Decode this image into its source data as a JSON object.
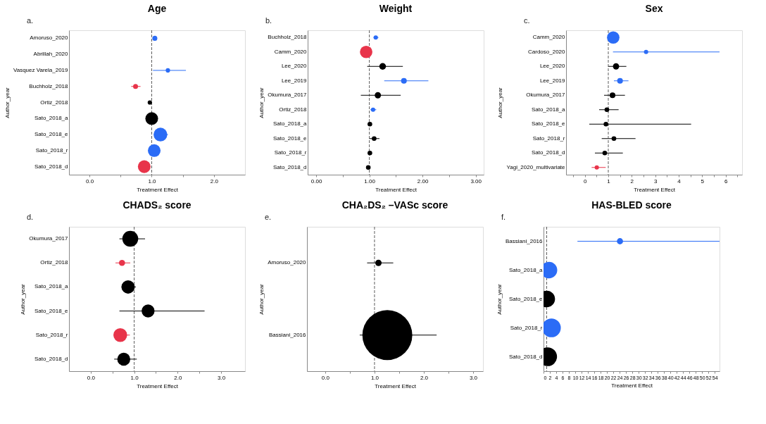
{
  "chart_data": [
    {
      "type": "bubble",
      "orientation": "horizontal",
      "title": "Age",
      "annotations": [
        "a."
      ],
      "xlabel": "Treatment Effect",
      "ylabel": "Author_year",
      "categories": [
        "Amoruso_2020",
        "Abrillah_2020",
        "Vasquez Varela_2019",
        "Buchholz_2018",
        "Ortiz_2018",
        "Sato_2018_a",
        "Sato_2018_e",
        "Sato_2018_r",
        "Sato_2018_d"
      ],
      "values": [
        1.05,
        null,
        1.26,
        0.74,
        0.97,
        1.0,
        1.14,
        1.04,
        0.88
      ],
      "errors": [
        null,
        null,
        [
          1.02,
          1.55
        ],
        [
          0.67,
          0.82
        ],
        null,
        null,
        [
          1.04,
          1.26
        ],
        null,
        null
      ],
      "sizes": [
        0.13,
        null,
        0.1,
        0.13,
        0.1,
        0.86,
        1,
        0.86,
        0.86
      ],
      "colors": [
        "#2b6cf6",
        null,
        "#2b6cf6",
        "#e8344a",
        "#000000",
        "#000000",
        "#2b6cf6",
        "#2b6cf6",
        "#e8344a"
      ],
      "xlim": [
        -0.33,
        2.5
      ],
      "xticks": [
        {
          "value": 0,
          "label": "0.0"
        },
        {
          "value": 0.5,
          "label": null
        },
        {
          "value": 1,
          "label": "1.0"
        },
        {
          "value": 1.5,
          "label": null
        },
        {
          "value": 2,
          "label": "2.0"
        }
      ],
      "ref_lines": [
        {
          "axis": "x",
          "value": 1,
          "line_style": "dashed"
        }
      ],
      "grid": false
    },
    {
      "type": "bubble",
      "orientation": "horizontal",
      "title": "Weight",
      "annotations": [
        "b."
      ],
      "xlabel": "Treatment Effect",
      "ylabel": "Author_year",
      "categories": [
        "Buchholz_2018",
        "Camm_2020",
        "Lee_2020",
        "Lee_2019",
        "Okumura_2017",
        "Ortiz_2018",
        "Sato_2018_a",
        "Sato_2018_e",
        "Sato_2018_r",
        "Sato_2018_d"
      ],
      "values": [
        1.12,
        0.94,
        1.25,
        1.65,
        1.16,
        1.07,
        1.01,
        1.09,
        1.01,
        0.98
      ],
      "errors": [
        [
          1.08,
          1.17
        ],
        null,
        [
          0.96,
          1.63
        ],
        [
          1.28,
          2.11
        ],
        [
          0.84,
          1.59
        ],
        [
          1.02,
          1.13
        ],
        null,
        [
          1.0,
          1.19
        ],
        null,
        null
      ],
      "sizes": [
        0.12,
        1,
        0.29,
        0.21,
        0.25,
        0.12,
        0.14,
        0.14,
        0.14,
        0.14
      ],
      "colors": [
        "#2b6cf6",
        "#e8344a",
        "#000000",
        "#2b6cf6",
        "#000000",
        "#2b6cf6",
        "#000000",
        "#000000",
        "#000000",
        "#000000"
      ],
      "xlim": [
        -0.16,
        3.15
      ],
      "xticks": [
        {
          "value": 0,
          "label": "0.00"
        },
        {
          "value": 0.5,
          "label": null
        },
        {
          "value": 1,
          "label": "1.00"
        },
        {
          "value": 1.5,
          "label": null
        },
        {
          "value": 2,
          "label": "2.00"
        },
        {
          "value": 2.5,
          "label": null
        },
        {
          "value": 3,
          "label": "3.00"
        }
      ],
      "ref_lines": [
        {
          "axis": "x",
          "value": 1,
          "line_style": "dashed"
        }
      ],
      "grid": false
    },
    {
      "type": "bubble",
      "orientation": "horizontal",
      "title": "Sex",
      "annotations": [
        "c."
      ],
      "xlabel": "Treatment Effect",
      "ylabel": "Author_year",
      "categories": [
        "Camm_2020",
        "Cardoso_2020",
        "Lee_2020",
        "Lee_2019",
        "Okumura_2017",
        "Sato_2018_a",
        "Sato_2018_e",
        "Sato_2018_r",
        "Sato_2018_d",
        "Yagi_2020_multivariate"
      ],
      "values": [
        1.21,
        2.61,
        1.33,
        1.5,
        1.18,
        0.94,
        0.9,
        1.24,
        0.85,
        0.51
      ],
      "errors": [
        null,
        [
          1.2,
          5.74
        ],
        [
          1.0,
          1.77
        ],
        [
          1.24,
          1.86
        ],
        [
          0.82,
          1.71
        ],
        [
          0.61,
          1.44
        ],
        [
          0.19,
          4.53
        ],
        [
          0.72,
          2.16
        ],
        [
          0.43,
          1.62
        ],
        [
          0.29,
          0.89
        ]
      ],
      "sizes": [
        1,
        0.12,
        0.25,
        0.21,
        0.21,
        0.14,
        0.14,
        0.14,
        0.14,
        0.12
      ],
      "colors": [
        "#2b6cf6",
        "#2b6cf6",
        "#000000",
        "#2b6cf6",
        "#000000",
        "#000000",
        "#000000",
        "#000000",
        "#000000",
        "#e8344a"
      ],
      "xlim": [
        -0.8,
        6.7
      ],
      "xticks": [
        {
          "value": -0.5,
          "label": null
        },
        0,
        {
          "value": 0.5,
          "label": null
        },
        1,
        {
          "value": 1.5,
          "label": null
        },
        2,
        {
          "value": 2.5,
          "label": null
        },
        3,
        {
          "value": 3.5,
          "label": null
        },
        4,
        {
          "value": 4.5,
          "label": null
        },
        5,
        {
          "value": 5.5,
          "label": null
        },
        6,
        {
          "value": 6.5,
          "label": null
        }
      ],
      "ref_lines": [
        {
          "axis": "x",
          "value": 1,
          "line_style": "dashed"
        }
      ],
      "grid": false
    },
    {
      "type": "bubble",
      "orientation": "horizontal",
      "title": "CHADS₂ score",
      "annotations": [
        "d."
      ],
      "xlabel": "Treatment Effect",
      "ylabel": "Author_year",
      "categories": [
        "Okumura_2017",
        "Ortiz_2018",
        "Sato_2018_a",
        "Sato_2018_e",
        "Sato_2018_r",
        "Sato_2018_d"
      ],
      "values": [
        0.91,
        0.72,
        0.86,
        1.32,
        0.68,
        0.76
      ],
      "errors": [
        [
          0.66,
          1.25
        ],
        [
          0.57,
          0.91
        ],
        [
          0.71,
          1.04
        ],
        [
          0.66,
          2.62
        ],
        [
          0.53,
          0.9
        ],
        [
          0.54,
          1.06
        ]
      ],
      "sizes": [
        1,
        0.15,
        0.71,
        0.67,
        0.75,
        0.67
      ],
      "colors": [
        "#000000",
        "#e8344a",
        "#000000",
        "#000000",
        "#e8344a",
        "#000000"
      ],
      "xlim": [
        -0.5,
        3.55
      ],
      "xticks": [
        {
          "value": 0,
          "label": "0.0"
        },
        {
          "value": 0.5,
          "label": null
        },
        {
          "value": 1,
          "label": "1.0"
        },
        {
          "value": 1.5,
          "label": null
        },
        {
          "value": 2,
          "label": "2.0"
        },
        {
          "value": 2.5,
          "label": null
        },
        {
          "value": 3,
          "label": "3.0"
        }
      ],
      "ref_lines": [
        {
          "axis": "x",
          "value": 1,
          "line_style": "dashed"
        }
      ],
      "grid": false
    },
    {
      "type": "bubble",
      "orientation": "horizontal",
      "title": "CHA₂DS₂ –VASc score",
      "annotations": [
        "e."
      ],
      "xlabel": "Treatment Effect",
      "ylabel": "Author_year",
      "categories": [
        "Amoruso_2020",
        "Bassiani_2016"
      ],
      "values": [
        1.08,
        1.26
      ],
      "errors": [
        [
          0.85,
          1.38
        ],
        [
          0.7,
          2.26
        ]
      ],
      "sizes": [
        0.016,
        1
      ],
      "colors": [
        "#000000",
        "#000000"
      ],
      "xlim": [
        -0.37,
        3.2
      ],
      "xticks": [
        {
          "value": 0,
          "label": "0.0"
        },
        {
          "value": 0.5,
          "label": null
        },
        {
          "value": 1,
          "label": "1.0"
        },
        {
          "value": 1.5,
          "label": null
        },
        {
          "value": 2,
          "label": "2.0"
        },
        {
          "value": 2.5,
          "label": null
        },
        {
          "value": 3,
          "label": "3.0"
        }
      ],
      "ref_lines": [
        {
          "axis": "x",
          "value": 1,
          "line_style": "dashed"
        }
      ],
      "grid": false
    },
    {
      "type": "bubble",
      "orientation": "horizontal",
      "title": "HAS-BLED score",
      "annotations": [
        "f."
      ],
      "xlabel": "Treatment Effect",
      "ylabel": "Author_year",
      "categories": [
        "Bassiani_2016",
        "Sato_2018_a",
        "Sato_2018_e",
        "Sato_2018_r",
        "Sato_2018_d"
      ],
      "values": [
        24.1,
        1.7,
        1.0,
        2.5,
        1.3
      ],
      "errors": [
        [
          10.7,
          55.5
        ],
        null,
        null,
        null,
        null
      ],
      "sizes": [
        0.11,
        0.79,
        0.79,
        1,
        1
      ],
      "colors": [
        "#2b6cf6",
        "#2b6cf6",
        "#000000",
        "#2b6cf6",
        "#000000"
      ],
      "xlim": [
        0,
        55.5
      ],
      "xticks": [
        0,
        2,
        4,
        6,
        8,
        10,
        12,
        14,
        16,
        18,
        20,
        22,
        24,
        26,
        28,
        30,
        32,
        34,
        36,
        38,
        40,
        42,
        44,
        46,
        48,
        50,
        52,
        54
      ],
      "ref_lines": [
        {
          "axis": "x",
          "value": 1,
          "line_style": "dashed"
        }
      ],
      "grid": false
    }
  ]
}
